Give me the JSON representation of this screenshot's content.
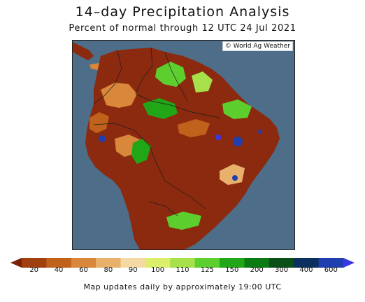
{
  "header": {
    "title": "14–day Precipitation Analysis",
    "subtitle": "Percent of normal through 12 UTC 24 Jul 2021"
  },
  "map": {
    "credit": "© World Ag Weather",
    "ocean_color": "#4e6d88",
    "dry_color": "#8b2a0e"
  },
  "legend": {
    "colors": [
      "#7a2208",
      "#a0400f",
      "#c0621c",
      "#d9873a",
      "#e9b06b",
      "#f5d9a3",
      "#dcef6c",
      "#a6e04a",
      "#5ccf2e",
      "#21a617",
      "#0a7a12",
      "#0a4f18",
      "#0b2f5e",
      "#1f3fb0",
      "#3838e6"
    ],
    "labels": [
      "20",
      "40",
      "60",
      "80",
      "90",
      "100",
      "110",
      "125",
      "150",
      "200",
      "300",
      "400",
      "600"
    ]
  },
  "footer": {
    "text": "Map updates daily by approximately 19:00 UTC"
  }
}
